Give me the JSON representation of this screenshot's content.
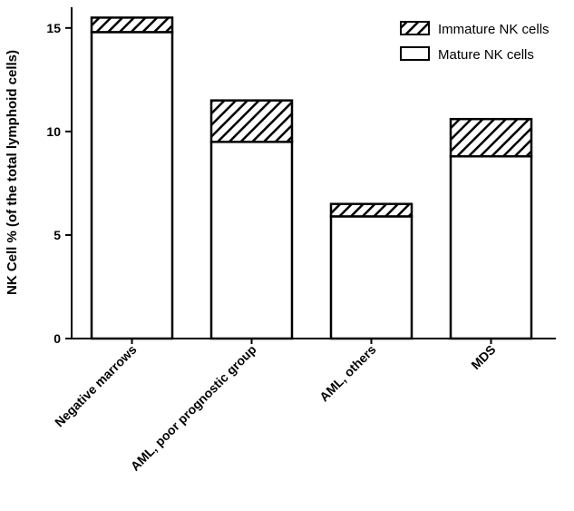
{
  "chart_data": {
    "type": "bar",
    "stacked": true,
    "categories": [
      "Negative marrows",
      "AML, poor prognostic group",
      "AML, others",
      "MDS"
    ],
    "series": [
      {
        "name": "Mature NK cells",
        "values": [
          14.8,
          9.5,
          5.9,
          8.8
        ],
        "pattern": "solid",
        "color": "#ffffff"
      },
      {
        "name": "Immature NK cells",
        "values": [
          0.7,
          2.0,
          0.6,
          1.8
        ],
        "pattern": "hatch",
        "color": "#000000"
      }
    ],
    "title": "",
    "xlabel": "",
    "ylabel": "NK Cell % (of the total lymphoid cells)",
    "ylim": [
      0,
      16
    ],
    "yticks": [
      "0",
      "5",
      "10",
      "15"
    ],
    "grid": false,
    "legend_position": "top-right"
  }
}
